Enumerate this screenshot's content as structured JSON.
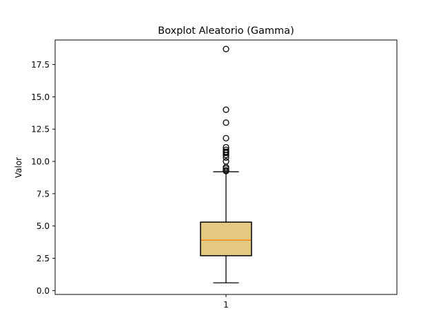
{
  "chart_data": {
    "type": "boxplot",
    "title": "Boxplot Aleatorio (Gamma)",
    "xlabel": "",
    "ylabel": "Valor",
    "categories": [
      "1"
    ],
    "ylim": [
      -0.3,
      19.4
    ],
    "yticks": [
      0.0,
      2.5,
      5.0,
      7.5,
      10.0,
      12.5,
      15.0,
      17.5
    ],
    "ytick_labels": [
      "0.0",
      "2.5",
      "5.0",
      "7.5",
      "10.0",
      "12.5",
      "15.0",
      "17.5"
    ],
    "grid": false,
    "boxes": [
      {
        "category": "1",
        "whisker_low": 0.6,
        "q1": 2.7,
        "median": 3.9,
        "q3": 5.3,
        "whisker_high": 9.2,
        "outliers": [
          9.25,
          9.3,
          9.45,
          9.55,
          10.0,
          10.3,
          10.5,
          10.65,
          10.75,
          10.9,
          11.1,
          11.8,
          13.0,
          14.0,
          18.7
        ]
      }
    ],
    "colors": {
      "box_fill": "#e4c982",
      "median_line": "#ff7f0e",
      "edge": "#000000"
    }
  }
}
